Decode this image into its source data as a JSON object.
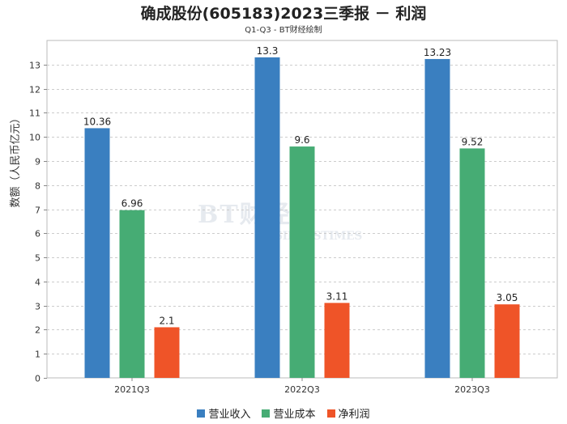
{
  "header": {
    "title": "确成股份(605183)2023三季报 － 利润",
    "subtitle": "Q1-Q3 - BT财经绘制"
  },
  "watermark": {
    "main": "BT财经",
    "sub": "BUSINESSTIMES"
  },
  "chart_data": {
    "type": "bar",
    "title": "确成股份(605183)2023三季报 － 利润",
    "subtitle": "Q1-Q3 - BT财经绘制",
    "xlabel": "",
    "ylabel": "数额（人民币亿元）",
    "ylim": [
      0,
      14
    ],
    "yticks": [
      0,
      1,
      2,
      3,
      4,
      5,
      6,
      7,
      8,
      9,
      10,
      11,
      12,
      13
    ],
    "grid": true,
    "legend_position": "bottom",
    "categories": [
      "2021Q3",
      "2022Q3",
      "2023Q3"
    ],
    "series": [
      {
        "name": "营业收入",
        "color": "#3a7fc0",
        "values": [
          10.36,
          13.3,
          13.23
        ]
      },
      {
        "name": "营业成本",
        "color": "#46ac74",
        "values": [
          6.96,
          9.6,
          9.52
        ]
      },
      {
        "name": "净利润",
        "color": "#ef5428",
        "values": [
          2.1,
          3.11,
          3.05
        ]
      }
    ]
  }
}
